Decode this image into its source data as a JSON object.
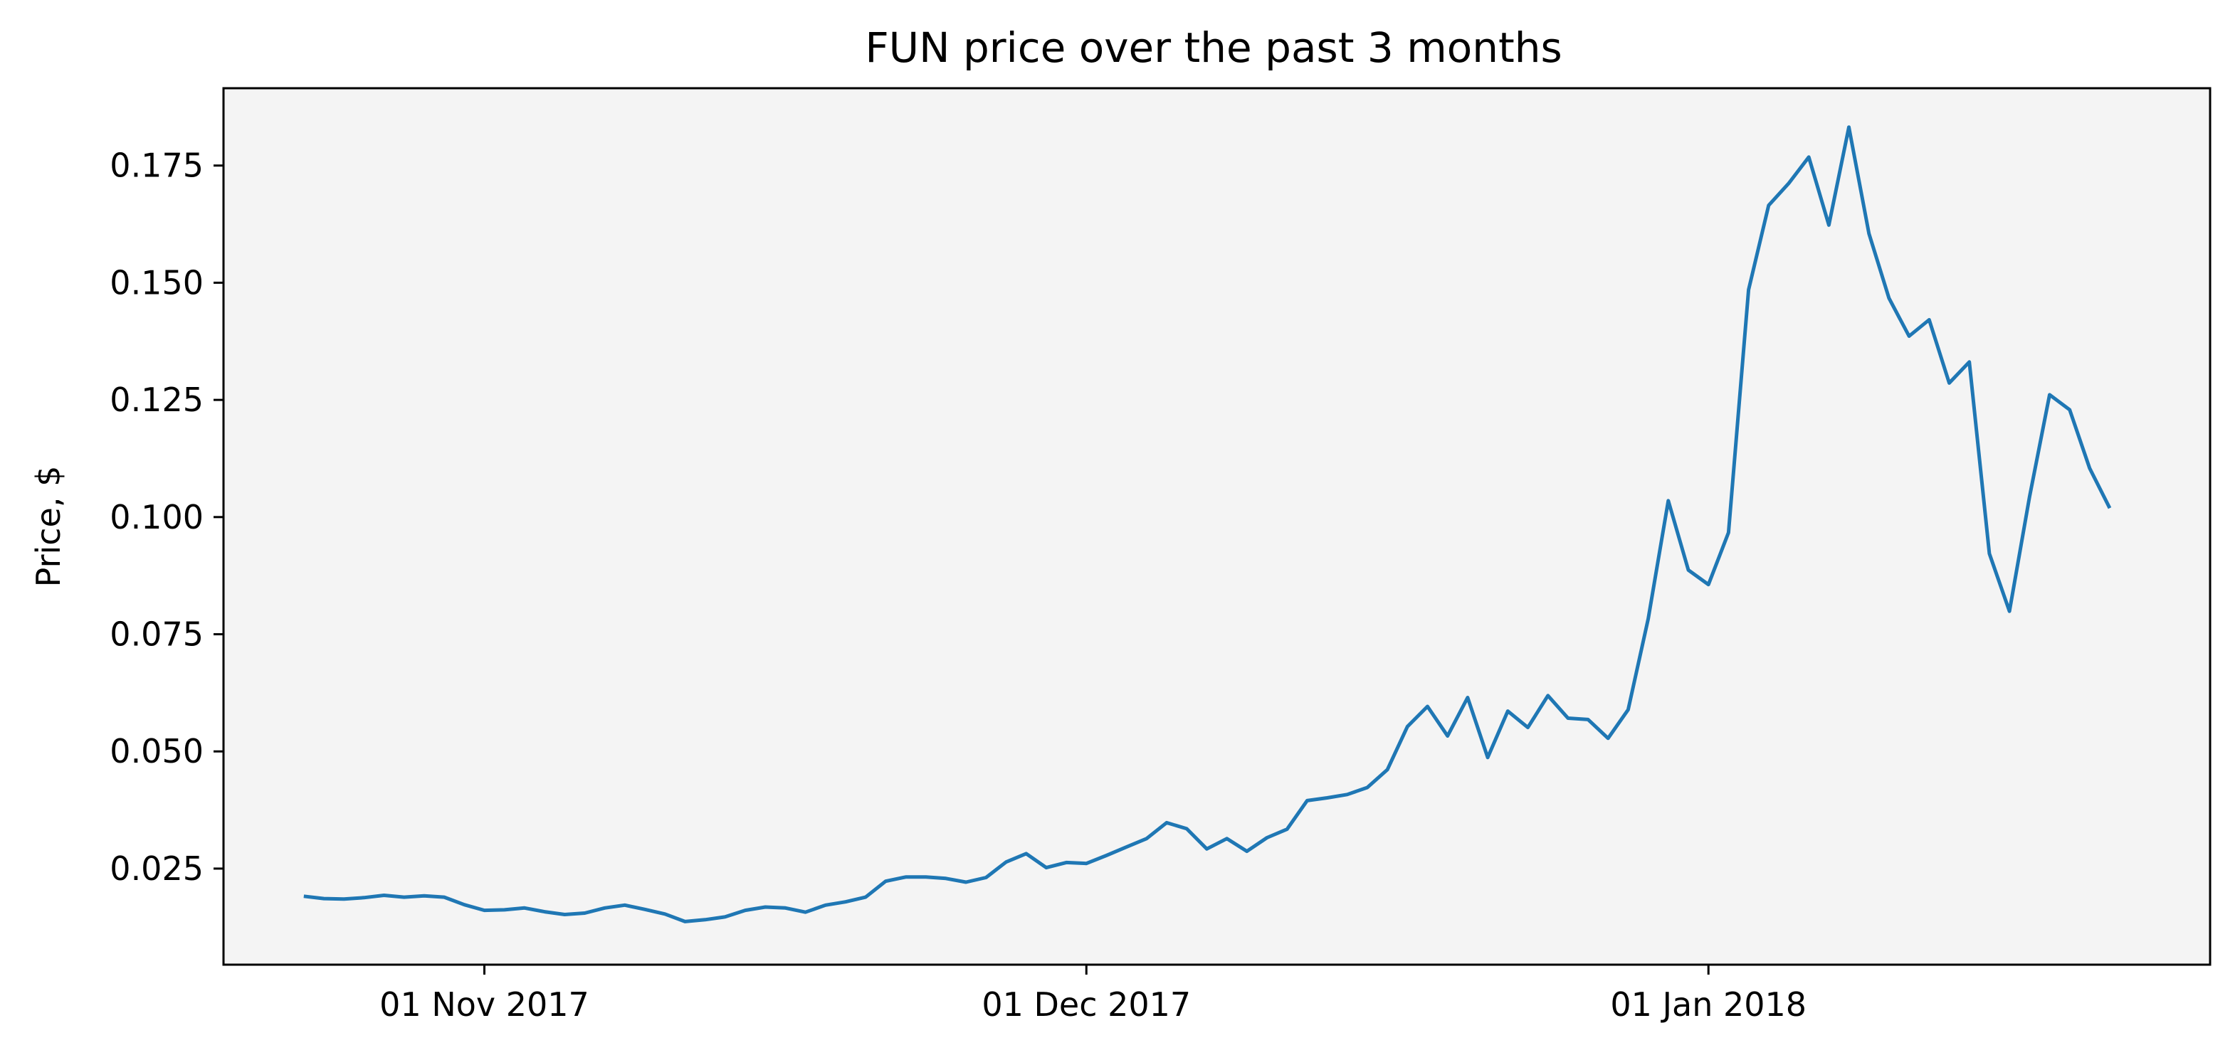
{
  "chart_data": {
    "type": "line",
    "title": "FUN price over the past 3 months",
    "xlabel": "",
    "ylabel": "Price, $",
    "xlim": [
      "2017-10-19",
      "2018-01-26"
    ],
    "ylim": [
      0.0045,
      0.1915
    ],
    "grid": false,
    "background_color": "#f4f4f4",
    "line_color": "#1f77b4",
    "x_ticks": [
      {
        "date": "2017-11-01",
        "label": "01 Nov 2017"
      },
      {
        "date": "2017-12-01",
        "label": "01 Dec 2017"
      },
      {
        "date": "2018-01-01",
        "label": "01 Jan 2018"
      }
    ],
    "y_ticks": [
      {
        "value": 0.025,
        "label": "0.025"
      },
      {
        "value": 0.05,
        "label": "0.050"
      },
      {
        "value": 0.075,
        "label": "0.075"
      },
      {
        "value": 0.1,
        "label": "0.100"
      },
      {
        "value": 0.125,
        "label": "0.125"
      },
      {
        "value": 0.15,
        "label": "0.150"
      },
      {
        "value": 0.175,
        "label": "0.175"
      }
    ],
    "series": [
      {
        "start_date": "2017-10-23",
        "values": [
          0.0191,
          0.0186,
          0.0185,
          0.0188,
          0.0193,
          0.0189,
          0.0192,
          0.0189,
          0.0173,
          0.0161,
          0.0162,
          0.0166,
          0.0158,
          0.0152,
          0.0155,
          0.0166,
          0.0172,
          0.0163,
          0.0153,
          0.0137,
          0.0141,
          0.0147,
          0.0161,
          0.0168,
          0.0166,
          0.0157,
          0.0172,
          0.0179,
          0.0189,
          0.0223,
          0.0232,
          0.0232,
          0.0229,
          0.0221,
          0.0231,
          0.0264,
          0.0282,
          0.0252,
          0.0263,
          0.0261,
          0.0278,
          0.0296,
          0.0314,
          0.0348,
          0.0335,
          0.0292,
          0.0314,
          0.0287,
          0.0316,
          0.0334,
          0.0395,
          0.0401,
          0.0408,
          0.0423,
          0.0461,
          0.0553,
          0.0596,
          0.0533,
          0.0615,
          0.0487,
          0.0586,
          0.0551,
          0.0619,
          0.0571,
          0.0568,
          0.0528,
          0.0589,
          0.0783,
          0.1035,
          0.0887,
          0.0856,
          0.0967,
          0.1485,
          0.1665,
          0.1712,
          0.1768,
          0.1623,
          0.1832,
          0.1605,
          0.1467,
          0.1386,
          0.1421,
          0.1286,
          0.1331,
          0.0922,
          0.0799,
          0.1043,
          0.1261,
          0.1229,
          0.1104,
          0.1019
        ]
      }
    ]
  }
}
